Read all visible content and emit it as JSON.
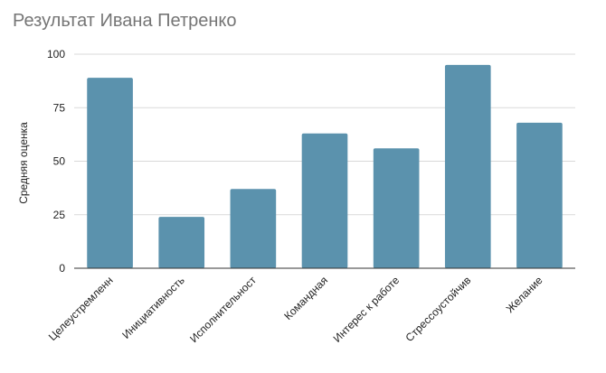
{
  "chart_data": {
    "type": "bar",
    "title": "Результат Ивана Петренко",
    "xlabel": "",
    "ylabel": "Средняя оценка",
    "ylim": [
      0,
      100
    ],
    "yticks": [
      "0",
      "25",
      "50",
      "75",
      "100"
    ],
    "grid": true,
    "categories": [
      "Целеустремленн",
      "Инициативность",
      "Исполнительност",
      "Командная",
      "Интерес к работе",
      "Стрессоустойчив",
      "Желание"
    ],
    "series": [
      {
        "values": [
          89,
          24,
          37,
          63,
          56,
          95,
          68
        ],
        "color": "#5b92ad"
      }
    ],
    "colors": {
      "bar": "#5b92ad",
      "grid": "#d9d9d9",
      "axis": "#333333",
      "title": "#757575"
    }
  }
}
